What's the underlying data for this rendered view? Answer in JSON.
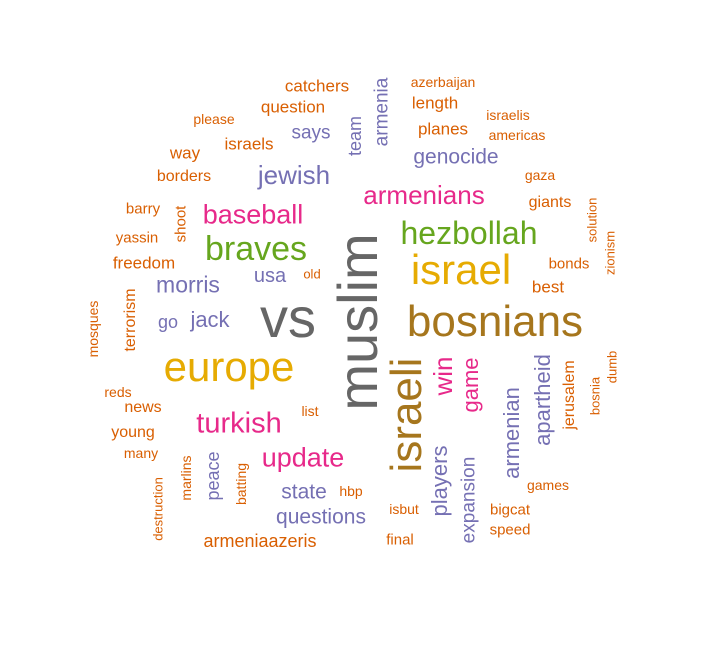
{
  "palette": {
    "orange": "#d95f02",
    "purple": "#7570b3",
    "magenta": "#e7298a",
    "green": "#66a61e",
    "gold": "#e6ab02",
    "brown": "#a6761d",
    "gray": "#666666"
  },
  "words": [
    {
      "text": "muslim",
      "color": "gray",
      "vertical": true
    },
    {
      "text": "vs",
      "color": "gray",
      "vertical": false
    },
    {
      "text": "bosnians",
      "color": "brown",
      "vertical": false
    },
    {
      "text": "israeli",
      "color": "brown",
      "vertical": true
    },
    {
      "text": "europe",
      "color": "gold",
      "vertical": false
    },
    {
      "text": "israel",
      "color": "gold",
      "vertical": false
    },
    {
      "text": "hezbollah",
      "color": "green",
      "vertical": false
    },
    {
      "text": "braves",
      "color": "green",
      "vertical": false
    },
    {
      "text": "armenians",
      "color": "magenta",
      "vertical": false
    },
    {
      "text": "baseball",
      "color": "magenta",
      "vertical": false
    },
    {
      "text": "update",
      "color": "magenta",
      "vertical": false
    },
    {
      "text": "turkish",
      "color": "magenta",
      "vertical": false
    },
    {
      "text": "win",
      "color": "magenta",
      "vertical": true
    },
    {
      "text": "game",
      "color": "magenta",
      "vertical": true
    },
    {
      "text": "armenian",
      "color": "purple",
      "vertical": true
    },
    {
      "text": "players",
      "color": "purple",
      "vertical": true
    },
    {
      "text": "apartheid",
      "color": "purple",
      "vertical": true
    },
    {
      "text": "jewish",
      "color": "purple",
      "vertical": false
    },
    {
      "text": "genocide",
      "color": "purple",
      "vertical": false
    },
    {
      "text": "morris",
      "color": "purple",
      "vertical": false
    },
    {
      "text": "jack",
      "color": "purple",
      "vertical": false
    },
    {
      "text": "questions",
      "color": "purple",
      "vertical": false
    },
    {
      "text": "state",
      "color": "purple",
      "vertical": false
    },
    {
      "text": "expansion",
      "color": "purple",
      "vertical": true
    },
    {
      "text": "armenia",
      "color": "purple",
      "vertical": true
    },
    {
      "text": "team",
      "color": "purple",
      "vertical": true
    },
    {
      "text": "says",
      "color": "purple",
      "vertical": false
    },
    {
      "text": "usa",
      "color": "purple",
      "vertical": false
    },
    {
      "text": "go",
      "color": "purple",
      "vertical": false
    },
    {
      "text": "peace",
      "color": "purple",
      "vertical": true
    },
    {
      "text": "armeniaazeris",
      "color": "orange",
      "vertical": false
    },
    {
      "text": "catchers",
      "color": "orange",
      "vertical": false
    },
    {
      "text": "question",
      "color": "orange",
      "vertical": false
    },
    {
      "text": "length",
      "color": "orange",
      "vertical": false
    },
    {
      "text": "planes",
      "color": "orange",
      "vertical": false
    },
    {
      "text": "israels",
      "color": "orange",
      "vertical": false
    },
    {
      "text": "way",
      "color": "orange",
      "vertical": false
    },
    {
      "text": "borders",
      "color": "orange",
      "vertical": false
    },
    {
      "text": "barry",
      "color": "orange",
      "vertical": false
    },
    {
      "text": "shoot",
      "color": "orange",
      "vertical": true
    },
    {
      "text": "yassin",
      "color": "orange",
      "vertical": false
    },
    {
      "text": "freedom",
      "color": "orange",
      "vertical": false
    },
    {
      "text": "terrorism",
      "color": "orange",
      "vertical": true
    },
    {
      "text": "mosques",
      "color": "orange",
      "vertical": true
    },
    {
      "text": "reds",
      "color": "orange",
      "vertical": false
    },
    {
      "text": "news",
      "color": "orange",
      "vertical": false
    },
    {
      "text": "young",
      "color": "orange",
      "vertical": false
    },
    {
      "text": "many",
      "color": "orange",
      "vertical": false
    },
    {
      "text": "destruction",
      "color": "orange",
      "vertical": true
    },
    {
      "text": "marlins",
      "color": "orange",
      "vertical": true
    },
    {
      "text": "batting",
      "color": "orange",
      "vertical": true
    },
    {
      "text": "list",
      "color": "orange",
      "vertical": false
    },
    {
      "text": "hbp",
      "color": "orange",
      "vertical": false
    },
    {
      "text": "isbut",
      "color": "orange",
      "vertical": false
    },
    {
      "text": "final",
      "color": "orange",
      "vertical": false
    },
    {
      "text": "old",
      "color": "orange",
      "vertical": false
    },
    {
      "text": "please",
      "color": "orange",
      "vertical": false
    },
    {
      "text": "azerbaijan",
      "color": "orange",
      "vertical": false
    },
    {
      "text": "israelis",
      "color": "orange",
      "vertical": false
    },
    {
      "text": "americas",
      "color": "orange",
      "vertical": false
    },
    {
      "text": "gaza",
      "color": "orange",
      "vertical": false
    },
    {
      "text": "giants",
      "color": "orange",
      "vertical": false
    },
    {
      "text": "solution",
      "color": "orange",
      "vertical": true
    },
    {
      "text": "zionism",
      "color": "orange",
      "vertical": true
    },
    {
      "text": "bonds",
      "color": "orange",
      "vertical": false
    },
    {
      "text": "best",
      "color": "orange",
      "vertical": false
    },
    {
      "text": "jerusalem",
      "color": "orange",
      "vertical": true
    },
    {
      "text": "bosnia",
      "color": "orange",
      "vertical": true
    },
    {
      "text": "dumb",
      "color": "orange",
      "vertical": true
    },
    {
      "text": "games",
      "color": "orange",
      "vertical": false
    },
    {
      "text": "bigcat",
      "color": "orange",
      "vertical": false
    },
    {
      "text": "speed",
      "color": "orange",
      "vertical": false
    }
  ]
}
